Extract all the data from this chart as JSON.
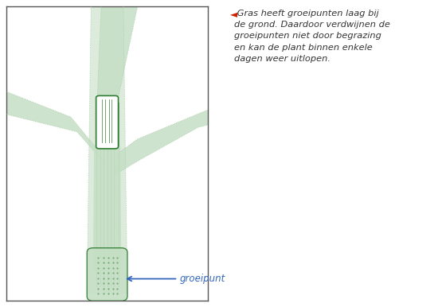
{
  "fig_width": 5.55,
  "fig_height": 3.86,
  "dpi": 100,
  "bg_color": "#ffffff",
  "panel_border_color": "#555555",
  "light_green": "#c5dfc5",
  "dot_green": "#a8cba8",
  "dark_green": "#2e7d32",
  "stem_fill": "#5aaa5a",
  "arrow_color": "#3366bb",
  "text_color": "#333333",
  "red_color": "#cc2200",
  "label_text": "groeipunt",
  "caption_line1": " Gras heeft groeipunten laag bij",
  "caption_line2": "de grond. Daardoor verdwijnen de",
  "caption_line3": "groeipunten niet door begrazing",
  "caption_line4": "en kan de plant binnen enkele",
  "caption_line5": "dagen weer uitlopen."
}
